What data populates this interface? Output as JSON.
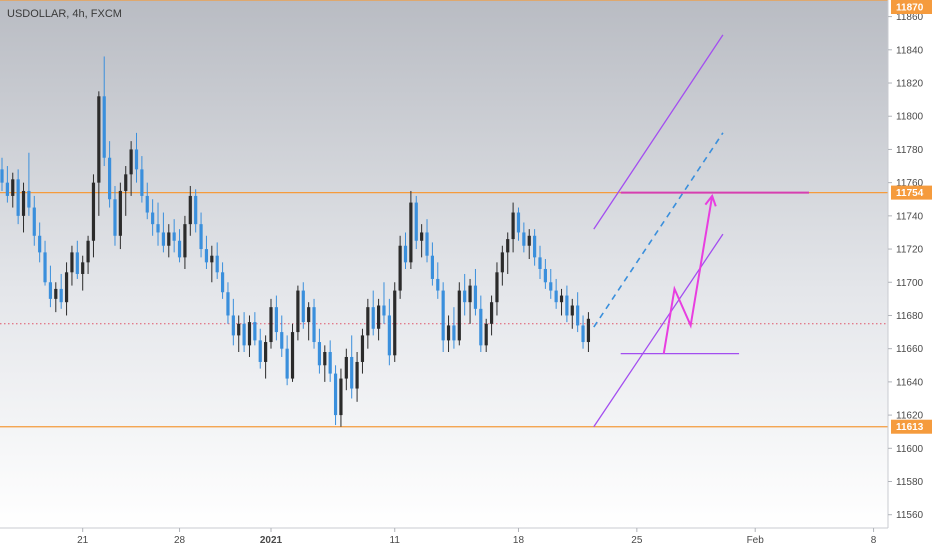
{
  "chart_data": {
    "type": "candlestick",
    "title": "USDOLLAR, 4h, FXCM",
    "symbol": "USDOLLAR",
    "timeframe": "4h",
    "source": "FXCM",
    "y_ticks": [
      11560,
      11580,
      11600,
      11620,
      11640,
      11660,
      11680,
      11700,
      11720,
      11740,
      11760,
      11780,
      11800,
      11820,
      11840,
      11860
    ],
    "x_ticks": [
      "21",
      "28",
      "2021",
      "11",
      "18",
      "25",
      "Feb",
      "8"
    ],
    "ylim": [
      11552,
      11870
    ],
    "level_labels": [
      "11870",
      "11754",
      "11613"
    ],
    "horizontal_levels": [
      11870,
      11754,
      11613
    ],
    "current_price_level": 11675,
    "up_color": "#2b2b2b",
    "down_color": "#3a8fdc",
    "level_color": "#f59b3d",
    "channel_color": "#a34ef0",
    "projection_color": "#e83ee0",
    "candles": [
      {
        "o": 11768,
        "h": 11775,
        "l": 11755,
        "c": 11760
      },
      {
        "o": 11760,
        "h": 11770,
        "l": 11748,
        "c": 11752
      },
      {
        "o": 11752,
        "h": 11766,
        "l": 11745,
        "c": 11762
      },
      {
        "o": 11762,
        "h": 11768,
        "l": 11735,
        "c": 11740
      },
      {
        "o": 11740,
        "h": 11760,
        "l": 11730,
        "c": 11755
      },
      {
        "o": 11755,
        "h": 11778,
        "l": 11740,
        "c": 11745
      },
      {
        "o": 11745,
        "h": 11752,
        "l": 11722,
        "c": 11728
      },
      {
        "o": 11728,
        "h": 11736,
        "l": 11712,
        "c": 11718
      },
      {
        "o": 11718,
        "h": 11725,
        "l": 11698,
        "c": 11700
      },
      {
        "o": 11700,
        "h": 11710,
        "l": 11685,
        "c": 11690
      },
      {
        "o": 11690,
        "h": 11700,
        "l": 11682,
        "c": 11696
      },
      {
        "o": 11696,
        "h": 11705,
        "l": 11684,
        "c": 11688
      },
      {
        "o": 11688,
        "h": 11712,
        "l": 11680,
        "c": 11706
      },
      {
        "o": 11706,
        "h": 11722,
        "l": 11698,
        "c": 11718
      },
      {
        "o": 11718,
        "h": 11725,
        "l": 11702,
        "c": 11705
      },
      {
        "o": 11705,
        "h": 11716,
        "l": 11695,
        "c": 11712
      },
      {
        "o": 11712,
        "h": 11728,
        "l": 11705,
        "c": 11725
      },
      {
        "o": 11725,
        "h": 11765,
        "l": 11715,
        "c": 11760
      },
      {
        "o": 11760,
        "h": 11815,
        "l": 11740,
        "c": 11812
      },
      {
        "o": 11812,
        "h": 11836,
        "l": 11770,
        "c": 11775
      },
      {
        "o": 11775,
        "h": 11785,
        "l": 11745,
        "c": 11750
      },
      {
        "o": 11750,
        "h": 11758,
        "l": 11722,
        "c": 11728
      },
      {
        "o": 11728,
        "h": 11760,
        "l": 11720,
        "c": 11755
      },
      {
        "o": 11755,
        "h": 11770,
        "l": 11740,
        "c": 11765
      },
      {
        "o": 11765,
        "h": 11785,
        "l": 11752,
        "c": 11780
      },
      {
        "o": 11780,
        "h": 11790,
        "l": 11760,
        "c": 11768
      },
      {
        "o": 11768,
        "h": 11776,
        "l": 11748,
        "c": 11752
      },
      {
        "o": 11752,
        "h": 11760,
        "l": 11738,
        "c": 11742
      },
      {
        "o": 11742,
        "h": 11750,
        "l": 11728,
        "c": 11735
      },
      {
        "o": 11735,
        "h": 11748,
        "l": 11722,
        "c": 11730
      },
      {
        "o": 11730,
        "h": 11742,
        "l": 11718,
        "c": 11722
      },
      {
        "o": 11722,
        "h": 11735,
        "l": 11715,
        "c": 11730
      },
      {
        "o": 11730,
        "h": 11738,
        "l": 11718,
        "c": 11725
      },
      {
        "o": 11725,
        "h": 11732,
        "l": 11712,
        "c": 11715
      },
      {
        "o": 11715,
        "h": 11740,
        "l": 11708,
        "c": 11735
      },
      {
        "o": 11735,
        "h": 11758,
        "l": 11728,
        "c": 11752
      },
      {
        "o": 11752,
        "h": 11756,
        "l": 11730,
        "c": 11735
      },
      {
        "o": 11735,
        "h": 11742,
        "l": 11715,
        "c": 11720
      },
      {
        "o": 11720,
        "h": 11728,
        "l": 11708,
        "c": 11712
      },
      {
        "o": 11712,
        "h": 11722,
        "l": 11700,
        "c": 11716
      },
      {
        "o": 11716,
        "h": 11724,
        "l": 11702,
        "c": 11706
      },
      {
        "o": 11706,
        "h": 11712,
        "l": 11690,
        "c": 11694
      },
      {
        "o": 11694,
        "h": 11700,
        "l": 11675,
        "c": 11680
      },
      {
        "o": 11680,
        "h": 11690,
        "l": 11662,
        "c": 11668
      },
      {
        "o": 11668,
        "h": 11680,
        "l": 11658,
        "c": 11675
      },
      {
        "o": 11675,
        "h": 11682,
        "l": 11658,
        "c": 11662
      },
      {
        "o": 11662,
        "h": 11680,
        "l": 11655,
        "c": 11676
      },
      {
        "o": 11676,
        "h": 11682,
        "l": 11662,
        "c": 11665
      },
      {
        "o": 11665,
        "h": 11672,
        "l": 11648,
        "c": 11652
      },
      {
        "o": 11652,
        "h": 11668,
        "l": 11642,
        "c": 11664
      },
      {
        "o": 11664,
        "h": 11690,
        "l": 11660,
        "c": 11685
      },
      {
        "o": 11685,
        "h": 11692,
        "l": 11665,
        "c": 11670
      },
      {
        "o": 11670,
        "h": 11680,
        "l": 11655,
        "c": 11660
      },
      {
        "o": 11660,
        "h": 11668,
        "l": 11638,
        "c": 11642
      },
      {
        "o": 11642,
        "h": 11675,
        "l": 11640,
        "c": 11670
      },
      {
        "o": 11670,
        "h": 11698,
        "l": 11665,
        "c": 11695
      },
      {
        "o": 11695,
        "h": 11700,
        "l": 11672,
        "c": 11676
      },
      {
        "o": 11676,
        "h": 11688,
        "l": 11665,
        "c": 11685
      },
      {
        "o": 11685,
        "h": 11690,
        "l": 11660,
        "c": 11664
      },
      {
        "o": 11664,
        "h": 11672,
        "l": 11645,
        "c": 11650
      },
      {
        "o": 11650,
        "h": 11662,
        "l": 11640,
        "c": 11658
      },
      {
        "o": 11658,
        "h": 11665,
        "l": 11640,
        "c": 11645
      },
      {
        "o": 11645,
        "h": 11650,
        "l": 11614,
        "c": 11620
      },
      {
        "o": 11620,
        "h": 11648,
        "l": 11613,
        "c": 11642
      },
      {
        "o": 11642,
        "h": 11660,
        "l": 11635,
        "c": 11655
      },
      {
        "o": 11655,
        "h": 11668,
        "l": 11630,
        "c": 11636
      },
      {
        "o": 11636,
        "h": 11658,
        "l": 11628,
        "c": 11652
      },
      {
        "o": 11652,
        "h": 11672,
        "l": 11645,
        "c": 11668
      },
      {
        "o": 11668,
        "h": 11690,
        "l": 11660,
        "c": 11685
      },
      {
        "o": 11685,
        "h": 11695,
        "l": 11668,
        "c": 11672
      },
      {
        "o": 11672,
        "h": 11690,
        "l": 11665,
        "c": 11686
      },
      {
        "o": 11686,
        "h": 11700,
        "l": 11675,
        "c": 11680
      },
      {
        "o": 11680,
        "h": 11690,
        "l": 11650,
        "c": 11656
      },
      {
        "o": 11656,
        "h": 11700,
        "l": 11652,
        "c": 11695
      },
      {
        "o": 11695,
        "h": 11728,
        "l": 11690,
        "c": 11722
      },
      {
        "o": 11722,
        "h": 11730,
        "l": 11708,
        "c": 11712
      },
      {
        "o": 11712,
        "h": 11755,
        "l": 11708,
        "c": 11748
      },
      {
        "o": 11748,
        "h": 11752,
        "l": 11720,
        "c": 11725
      },
      {
        "o": 11725,
        "h": 11735,
        "l": 11715,
        "c": 11730
      },
      {
        "o": 11730,
        "h": 11738,
        "l": 11712,
        "c": 11716
      },
      {
        "o": 11716,
        "h": 11724,
        "l": 11698,
        "c": 11702
      },
      {
        "o": 11702,
        "h": 11712,
        "l": 11690,
        "c": 11695
      },
      {
        "o": 11695,
        "h": 11700,
        "l": 11658,
        "c": 11665
      },
      {
        "o": 11665,
        "h": 11680,
        "l": 11658,
        "c": 11674
      },
      {
        "o": 11674,
        "h": 11685,
        "l": 11660,
        "c": 11665
      },
      {
        "o": 11665,
        "h": 11700,
        "l": 11662,
        "c": 11695
      },
      {
        "o": 11695,
        "h": 11705,
        "l": 11680,
        "c": 11688
      },
      {
        "o": 11688,
        "h": 11702,
        "l": 11675,
        "c": 11698
      },
      {
        "o": 11698,
        "h": 11708,
        "l": 11680,
        "c": 11684
      },
      {
        "o": 11684,
        "h": 11692,
        "l": 11658,
        "c": 11662
      },
      {
        "o": 11662,
        "h": 11678,
        "l": 11658,
        "c": 11675
      },
      {
        "o": 11675,
        "h": 11692,
        "l": 11668,
        "c": 11688
      },
      {
        "o": 11688,
        "h": 11712,
        "l": 11680,
        "c": 11706
      },
      {
        "o": 11706,
        "h": 11722,
        "l": 11698,
        "c": 11718
      },
      {
        "o": 11718,
        "h": 11730,
        "l": 11705,
        "c": 11726
      },
      {
        "o": 11726,
        "h": 11748,
        "l": 11718,
        "c": 11742
      },
      {
        "o": 11742,
        "h": 11745,
        "l": 11725,
        "c": 11730
      },
      {
        "o": 11730,
        "h": 11736,
        "l": 11718,
        "c": 11722
      },
      {
        "o": 11722,
        "h": 11732,
        "l": 11714,
        "c": 11728
      },
      {
        "o": 11728,
        "h": 11732,
        "l": 11710,
        "c": 11715
      },
      {
        "o": 11715,
        "h": 11722,
        "l": 11702,
        "c": 11708
      },
      {
        "o": 11708,
        "h": 11714,
        "l": 11696,
        "c": 11700
      },
      {
        "o": 11700,
        "h": 11708,
        "l": 11690,
        "c": 11695
      },
      {
        "o": 11695,
        "h": 11702,
        "l": 11684,
        "c": 11688
      },
      {
        "o": 11688,
        "h": 11696,
        "l": 11680,
        "c": 11692
      },
      {
        "o": 11692,
        "h": 11698,
        "l": 11676,
        "c": 11680
      },
      {
        "o": 11680,
        "h": 11690,
        "l": 11672,
        "c": 11686
      },
      {
        "o": 11686,
        "h": 11694,
        "l": 11670,
        "c": 11674
      },
      {
        "o": 11674,
        "h": 11680,
        "l": 11660,
        "c": 11664
      },
      {
        "o": 11664,
        "h": 11682,
        "l": 11658,
        "c": 11678
      }
    ],
    "annotations": {
      "channel_upper": [
        {
          "x": 110,
          "y": 11732
        },
        {
          "x": 134,
          "y": 11849
        }
      ],
      "channel_mid": [
        {
          "x": 110,
          "y": 11673
        },
        {
          "x": 134,
          "y": 11790
        }
      ],
      "channel_lower": [
        {
          "x": 110,
          "y": 11613
        },
        {
          "x": 134,
          "y": 11729
        }
      ],
      "resistance": [
        {
          "x": 115,
          "y": 11754
        },
        {
          "x": 150,
          "y": 11754
        }
      ],
      "support": [
        {
          "x": 115,
          "y": 11657
        },
        {
          "x": 137,
          "y": 11657
        }
      ],
      "projection_path": [
        {
          "x": 123,
          "y": 11657
        },
        {
          "x": 125,
          "y": 11696
        },
        {
          "x": 128,
          "y": 11674
        },
        {
          "x": 132,
          "y": 11752
        }
      ]
    }
  }
}
